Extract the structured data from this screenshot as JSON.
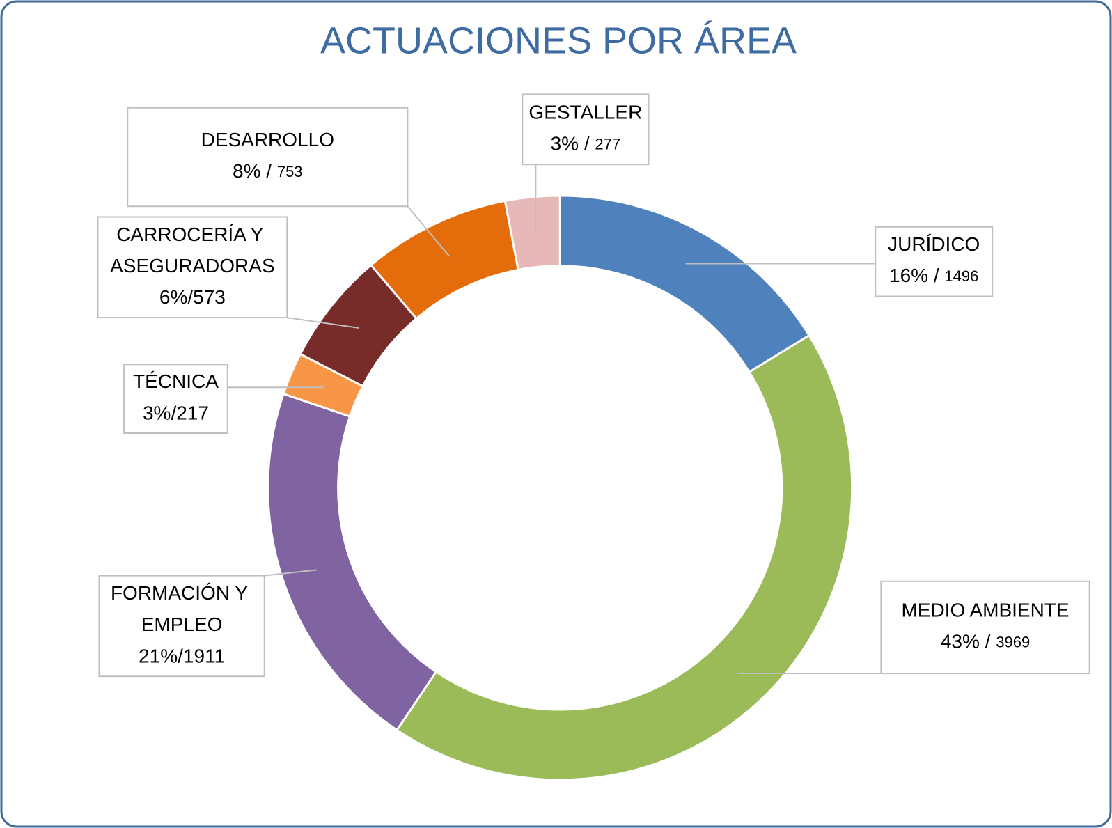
{
  "chart_data": {
    "type": "donut",
    "title": "ACTUACIONES POR ÁREA",
    "categories": [
      "JURÍDICO",
      "MEDIO AMBIENTE",
      "FORMACIÓN Y EMPLEO",
      "TÉCNICA",
      "CARROCERÍA Y ASEGURADORAS",
      "DESARROLLO",
      "GESTALLER"
    ],
    "values": [
      1496,
      3969,
      1911,
      217,
      573,
      753,
      277
    ],
    "value_labels": [
      "16% / 1496",
      "43% / 3969",
      "21%/1911",
      "3%/217",
      "6%/573",
      "8% / 753",
      "3% / 277"
    ],
    "colors": [
      "#4f81bd",
      "#9bbb59",
      "#8064a2",
      "#f79646",
      "#772c2a",
      "#e46c0a",
      "#e6b9b8"
    ]
  }
}
